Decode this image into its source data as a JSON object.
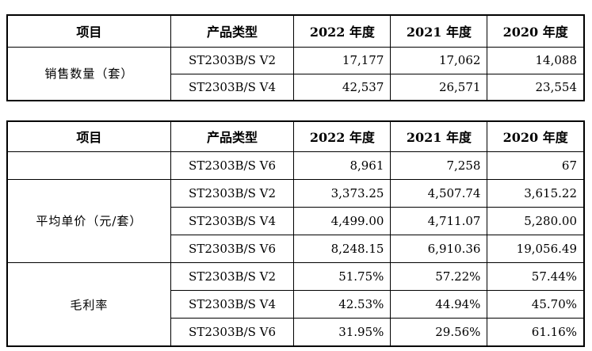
{
  "table1": {
    "headers": [
      "项目",
      "产品类型",
      "2022 年度",
      "2021 年度",
      "2020 年度"
    ],
    "group": "销售数量（套）",
    "rows": [
      {
        "type": "ST2303B/S V2",
        "y2022": "17,177",
        "y2021": "17,062",
        "y2020": "14,088"
      },
      {
        "type": "ST2303B/S V4",
        "y2022": "42,537",
        "y2021": "26,571",
        "y2020": "23,554"
      }
    ]
  },
  "table2": {
    "headers": [
      "项目",
      "产品类型",
      "2022 年度",
      "2021 年度",
      "2020 年度"
    ],
    "top_row": {
      "type": "ST2303B/S V6",
      "y2022": "8,961",
      "y2021": "7,258",
      "y2020": "67"
    },
    "group_price": "平均单价（元/套）",
    "price_rows": [
      {
        "type": "ST2303B/S V2",
        "y2022": "3,373.25",
        "y2021": "4,507.74",
        "y2020": "3,615.22"
      },
      {
        "type": "ST2303B/S V4",
        "y2022": "4,499.00",
        "y2021": "4,711.07",
        "y2020": "5,280.00"
      },
      {
        "type": "ST2303B/S V6",
        "y2022": "8,248.15",
        "y2021": "6,910.36",
        "y2020": "19,056.49"
      }
    ],
    "group_margin": "毛利率",
    "margin_rows": [
      {
        "type": "ST2303B/S V2",
        "y2022": "51.75%",
        "y2021": "57.22%",
        "y2020": "57.44%"
      },
      {
        "type": "ST2303B/S V4",
        "y2022": "42.53%",
        "y2021": "44.94%",
        "y2020": "45.70%"
      },
      {
        "type": "ST2303B/S V6",
        "y2022": "31.95%",
        "y2021": "29.56%",
        "y2020": "61.16%"
      }
    ]
  }
}
